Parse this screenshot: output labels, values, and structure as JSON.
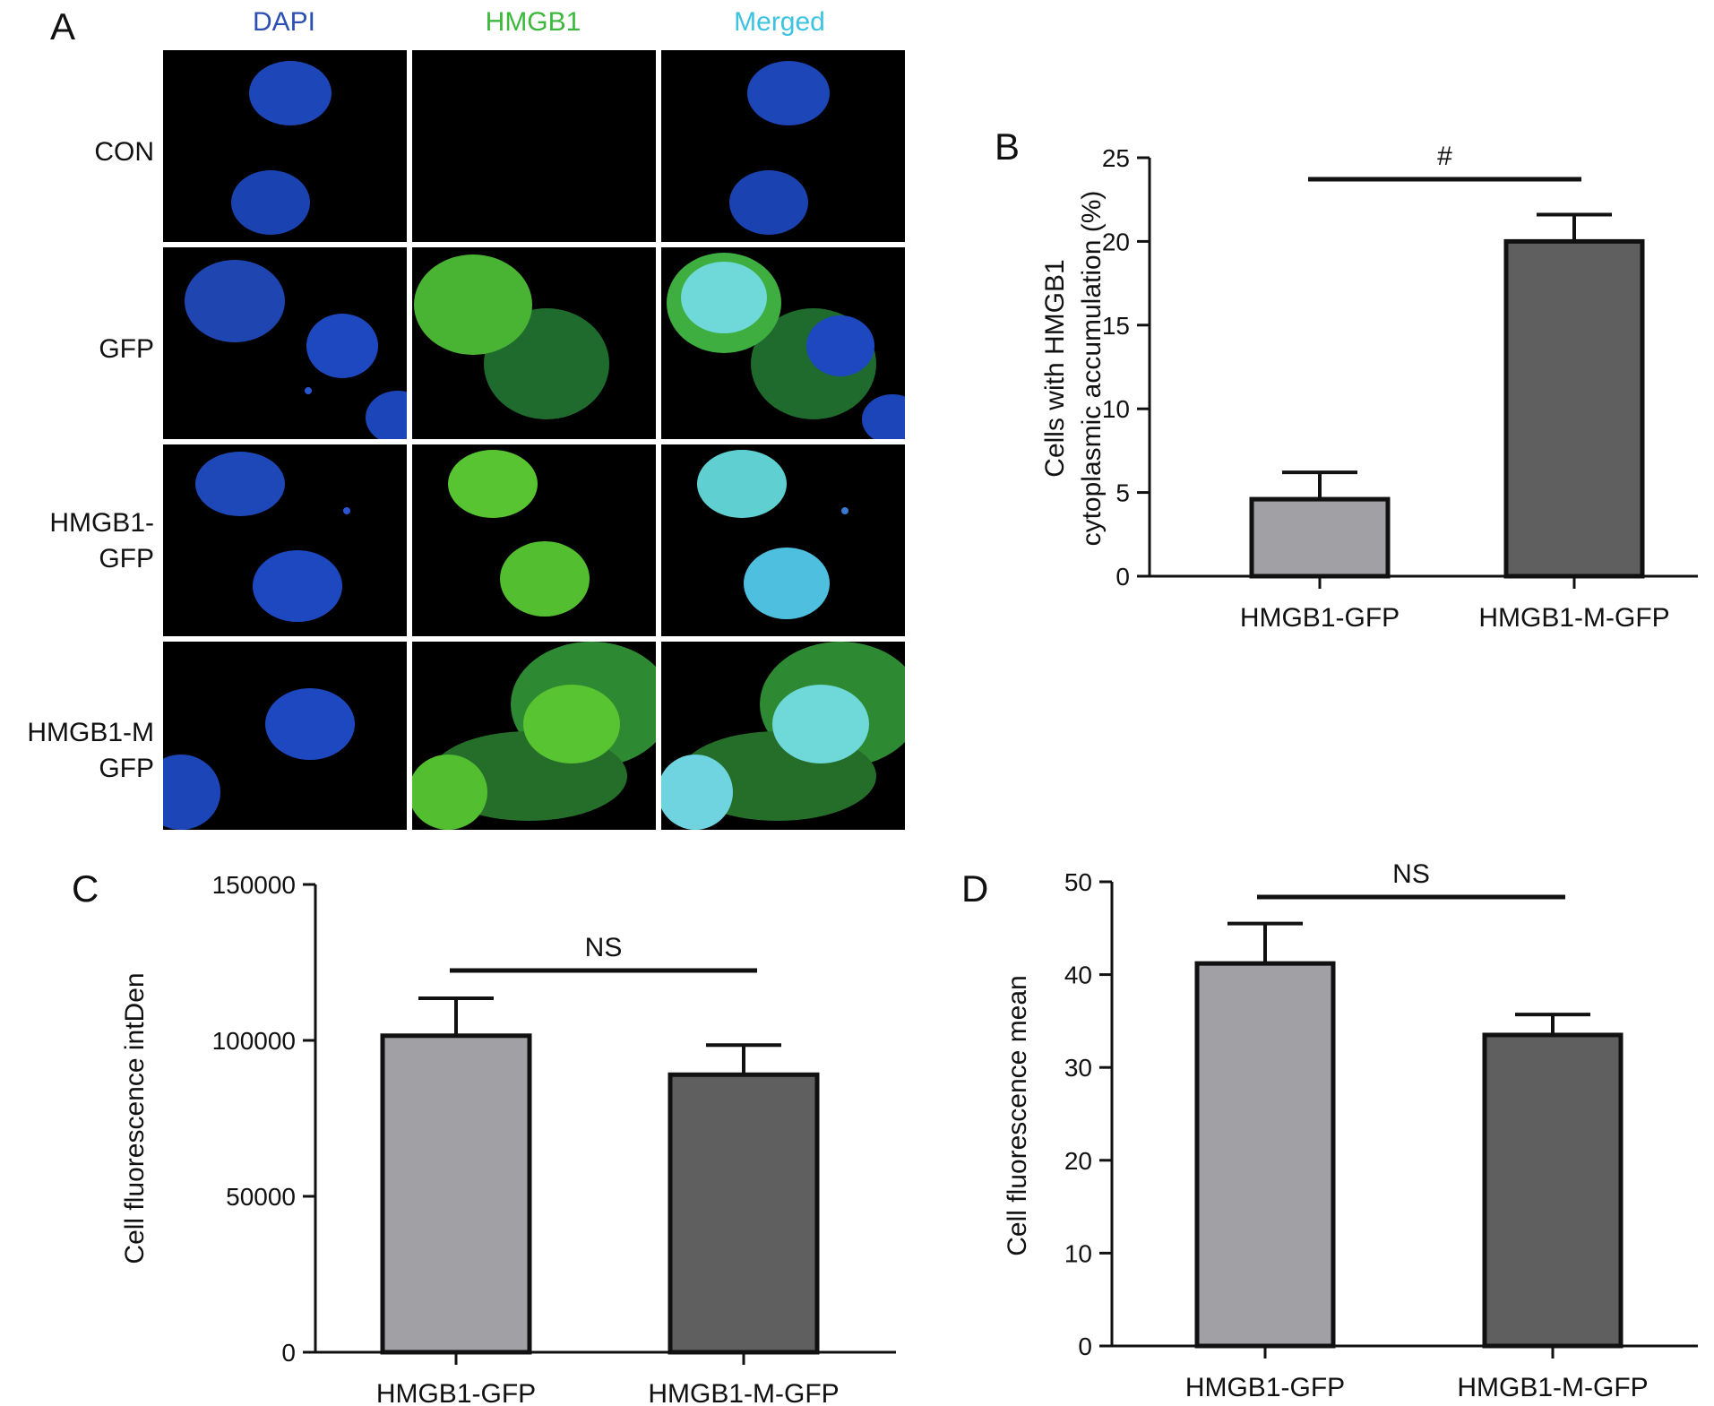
{
  "panel_a": {
    "letter": "A",
    "columns": [
      "DAPI",
      "HMGB1",
      "Merged"
    ],
    "column_colors": [
      "#2b4fb3",
      "#3cb83c",
      "#3cc3e0"
    ],
    "rows": [
      {
        "line1": "CON",
        "line2": ""
      },
      {
        "line1": "GFP",
        "line2": ""
      },
      {
        "line1": "HMGB1-",
        "line2": "GFP"
      },
      {
        "line1": "HMGB1-M",
        "line2": "GFP"
      }
    ]
  },
  "chart_data": [
    {
      "panel": "B",
      "type": "bar",
      "categories": [
        "HMGB1-GFP",
        "HMGB1-M-GFP"
      ],
      "values": [
        4.6,
        20.0
      ],
      "errors": [
        1.6,
        1.6
      ],
      "ylabel": [
        "Cells with HMGB1",
        "cytoplasmic accumulation (%)"
      ],
      "ylim": [
        0,
        25
      ],
      "yticks": [
        0,
        5,
        10,
        15,
        20,
        25
      ],
      "significance": "#",
      "bar_colors": [
        "#a0a0a5",
        "#5f5f5f"
      ]
    },
    {
      "panel": "C",
      "type": "bar",
      "categories": [
        "HMGB1-GFP",
        "HMGB1-M-GFP"
      ],
      "values": [
        101500,
        89000
      ],
      "errors": [
        12000,
        9500
      ],
      "ylabel": [
        "Cell fluorescence intDen"
      ],
      "ylim": [
        0,
        150000
      ],
      "yticks": [
        0,
        50000,
        100000,
        150000
      ],
      "significance": "NS",
      "bar_colors": [
        "#a0a0a5",
        "#5f5f5f"
      ]
    },
    {
      "panel": "D",
      "type": "bar",
      "categories": [
        "HMGB1-GFP",
        "HMGB1-M-GFP"
      ],
      "values": [
        41.2,
        33.5
      ],
      "errors": [
        4.3,
        2.2
      ],
      "ylabel": [
        "Cell fluorescence mean"
      ],
      "ylim": [
        0,
        50
      ],
      "yticks": [
        0,
        10,
        20,
        30,
        40,
        50
      ],
      "significance": "NS",
      "bar_colors": [
        "#a0a0a5",
        "#5f5f5f"
      ]
    }
  ]
}
